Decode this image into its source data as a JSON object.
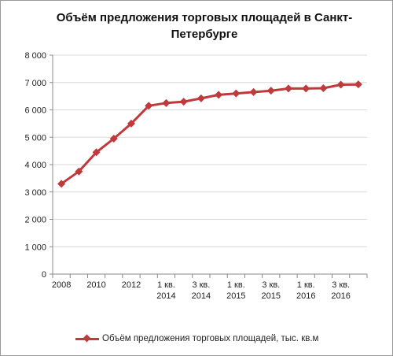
{
  "chart_data": {
    "type": "line",
    "title": "Объём предложения торговых площадей в Санкт-Петербурге",
    "ylim": [
      0,
      8000
    ],
    "yticks": [
      "0",
      "1 000",
      "2 000",
      "3 000",
      "4 000",
      "5 000",
      "6 000",
      "7 000",
      "8 000"
    ],
    "ytick_values": [
      0,
      1000,
      2000,
      3000,
      4000,
      5000,
      6000,
      7000,
      8000
    ],
    "xtick_labels": [
      {
        "line1": "2008",
        "line2": ""
      },
      {
        "line1": "2010",
        "line2": ""
      },
      {
        "line1": "2012",
        "line2": ""
      },
      {
        "line1": "1 кв.",
        "line2": "2014"
      },
      {
        "line1": "3 кв.",
        "line2": "2014"
      },
      {
        "line1": "1 кв.",
        "line2": "2015"
      },
      {
        "line1": "3 кв.",
        "line2": "2015"
      },
      {
        "line1": "1 кв.",
        "line2": "2016"
      },
      {
        "line1": "3 кв.",
        "line2": "2016"
      }
    ],
    "xtick_positions": [
      0,
      2,
      4,
      6,
      8,
      10,
      12,
      14,
      16
    ],
    "series": [
      {
        "name": "Объём предложения торговых площадей, тыс. кв.м",
        "color": "#c0393b",
        "values": [
          3300,
          3750,
          4450,
          4950,
          5500,
          6150,
          6250,
          6300,
          6420,
          6550,
          6600,
          6650,
          6700,
          6780,
          6780,
          6790,
          6920,
          6930
        ]
      }
    ],
    "grid": "horizontal",
    "legend_position": "bottom"
  }
}
